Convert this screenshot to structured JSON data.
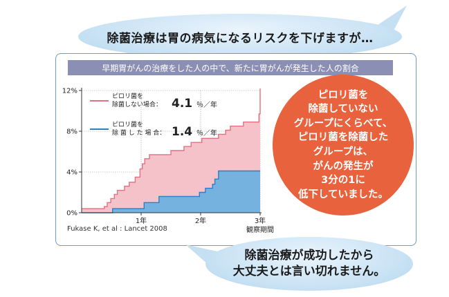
{
  "bubbles": {
    "top": "除菌治療は胃の病気になるリスクを下げますが…",
    "bottom_line1": "除菌治療が成功したから",
    "bottom_line2": "大丈夫とは言い切れません。"
  },
  "subtitle": "早期胃がんの治療をした人の中で、新たに胃がんが発生した人の割合",
  "callout_lines": [
    "ピロリ菌を",
    "除菌していない",
    "グループにくらべて、",
    "ピロリ菌を除菌した",
    "グループは、",
    "がんの発生が",
    "3分の1に",
    "低下していました。"
  ],
  "source": "Fukase K, et al : Lancet 2008",
  "colors": {
    "red": "#e46f81",
    "red_fill": "#f4c2c8",
    "blue": "#2e7fc2",
    "blue_fill": "#76b2df",
    "orange": "#e8623d"
  },
  "chart_data": {
    "type": "area",
    "xlabel": "観察期間",
    "xlim": [
      0,
      3
    ],
    "ylim": [
      0,
      12
    ],
    "y_ticks": [
      {
        "v": 0,
        "label": "0%"
      },
      {
        "v": 4,
        "label": "4%"
      },
      {
        "v": 8,
        "label": "8%"
      },
      {
        "v": 12,
        "label": "12%"
      }
    ],
    "x_ticks": [
      {
        "v": 1,
        "label": "1年"
      },
      {
        "v": 2,
        "label": "2年"
      },
      {
        "v": 3,
        "label": "3年"
      }
    ],
    "series": [
      {
        "name": "ピロリ菌を除菌しない場合",
        "name_line1": "ピロリ菌を",
        "name_line2": "除菌しない場合",
        "rate": "4.1",
        "rate_unit": "％／年",
        "color": "red",
        "points": [
          [
            0,
            0.4
          ],
          [
            0.38,
            0.4
          ],
          [
            0.38,
            0.6
          ],
          [
            0.43,
            0.6
          ],
          [
            0.43,
            1.0
          ],
          [
            0.49,
            1.0
          ],
          [
            0.49,
            1.4
          ],
          [
            0.55,
            1.4
          ],
          [
            0.55,
            1.8
          ],
          [
            0.6,
            1.8
          ],
          [
            0.6,
            2.2
          ],
          [
            0.72,
            2.2
          ],
          [
            0.72,
            2.6
          ],
          [
            0.8,
            2.6
          ],
          [
            0.8,
            3.0
          ],
          [
            0.9,
            3.0
          ],
          [
            0.9,
            3.5
          ],
          [
            0.98,
            3.5
          ],
          [
            0.98,
            4.3
          ],
          [
            1.02,
            4.3
          ],
          [
            1.02,
            4.8
          ],
          [
            1.06,
            4.8
          ],
          [
            1.06,
            5.3
          ],
          [
            1.14,
            5.3
          ],
          [
            1.14,
            5.7
          ],
          [
            1.5,
            5.7
          ],
          [
            1.5,
            6.1
          ],
          [
            1.72,
            6.1
          ],
          [
            1.72,
            6.5
          ],
          [
            1.84,
            6.5
          ],
          [
            1.84,
            6.9
          ],
          [
            2.02,
            6.9
          ],
          [
            2.02,
            7.3
          ],
          [
            2.3,
            7.3
          ],
          [
            2.3,
            7.7
          ],
          [
            2.42,
            7.7
          ],
          [
            2.42,
            8.1
          ],
          [
            2.5,
            8.1
          ],
          [
            2.5,
            8.5
          ],
          [
            2.72,
            8.5
          ],
          [
            2.72,
            8.9
          ],
          [
            2.98,
            8.9
          ],
          [
            2.98,
            9.7
          ],
          [
            3.0,
            9.7
          ],
          [
            3.0,
            12.2
          ]
        ]
      },
      {
        "name": "ピロリ菌を除菌した場合",
        "name_line1": "ピロリ菌を",
        "name_line2": "除 菌 し た 場 合",
        "rate": "1.4",
        "rate_unit": "％／年",
        "color": "blue",
        "points": [
          [
            0,
            0
          ],
          [
            0.52,
            0
          ],
          [
            0.52,
            0.4
          ],
          [
            1.05,
            0.4
          ],
          [
            1.05,
            1.0
          ],
          [
            1.3,
            1.0
          ],
          [
            1.3,
            1.6
          ],
          [
            1.98,
            1.6
          ],
          [
            1.98,
            2.0
          ],
          [
            2.08,
            2.0
          ],
          [
            2.08,
            2.4
          ],
          [
            2.2,
            2.4
          ],
          [
            2.2,
            2.8
          ],
          [
            2.24,
            2.8
          ],
          [
            2.24,
            3.3
          ],
          [
            2.3,
            3.3
          ],
          [
            2.3,
            4.1
          ],
          [
            3.0,
            4.1
          ]
        ]
      }
    ]
  }
}
